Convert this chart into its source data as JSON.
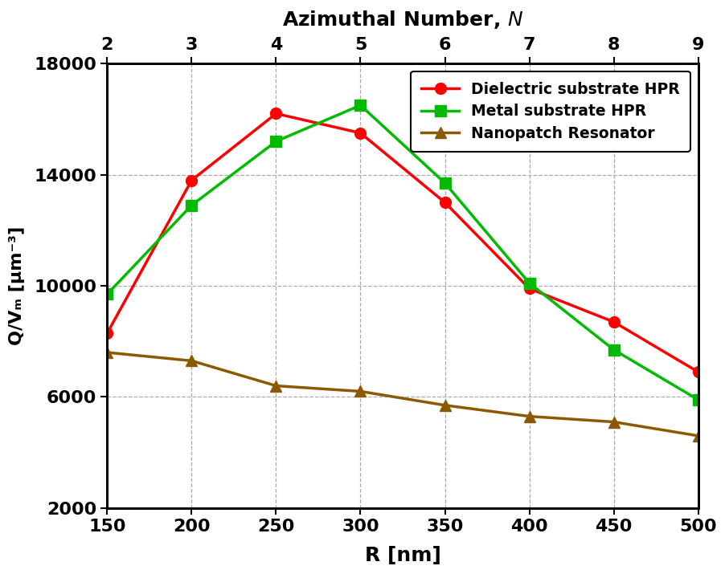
{
  "R_nm": [
    150,
    200,
    250,
    300,
    350,
    400,
    450,
    500
  ],
  "N_azimuthal": [
    2,
    3,
    4,
    5,
    6,
    7,
    8,
    9
  ],
  "dielectric_hpr": [
    8300,
    13800,
    16200,
    15500,
    13000,
    9900,
    8700,
    6900
  ],
  "metal_hpr": [
    9700,
    12900,
    15200,
    16500,
    13700,
    10100,
    7700,
    5900
  ],
  "nanopatch": [
    7600,
    7300,
    6400,
    6200,
    5700,
    5300,
    5100,
    4600
  ],
  "dielectric_color": "#FF0000",
  "metal_color": "#00BB00",
  "nanopatch_color": "#8B5A00",
  "xlabel": "R [nm]",
  "ylabel": "Q/Vₘ [μm⁻³]",
  "legend_dielectric": "Dielectric substrate HPR",
  "legend_metal": "Metal substrate HPR",
  "legend_nanopatch": "Nanopatch Resonator",
  "ylim": [
    2000,
    18000
  ],
  "yticks": [
    2000,
    6000,
    10000,
    14000,
    18000
  ],
  "xlim": [
    150,
    500
  ],
  "xticks_bottom": [
    150,
    200,
    250,
    300,
    350,
    400,
    450,
    500
  ],
  "xticks_top": [
    2,
    3,
    4,
    5,
    6,
    7,
    8,
    9
  ],
  "grid_color": "#AAAAAA",
  "bg_color": "#FFFFFF",
  "linewidth": 2.5,
  "markersize": 10
}
